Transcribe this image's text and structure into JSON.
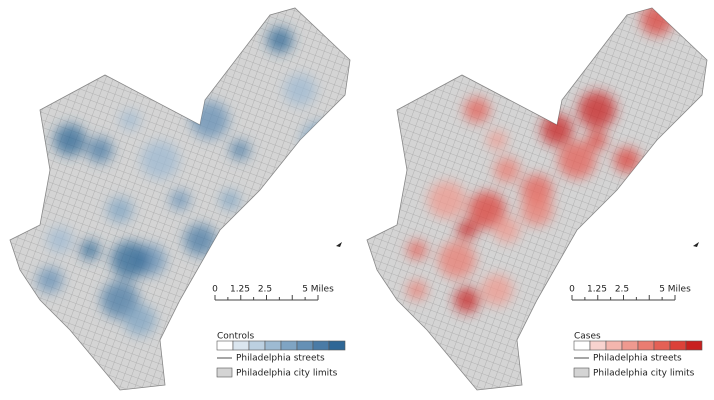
{
  "panels": [
    {
      "scale_bar": {
        "labels": [
          "0",
          "1.25",
          "2.5",
          "5 Miles"
        ]
      },
      "legend": {
        "title": "Controls",
        "colors": [
          "#ffffff",
          "#dbe6ef",
          "#bcd0e1",
          "#9dbad2",
          "#7fa4c3",
          "#6590b5",
          "#4a7ba6",
          "#2f6796"
        ],
        "streets": "Philadelphia streets",
        "limits": "Philadelphia city limits"
      }
    },
    {
      "scale_bar": {
        "labels": [
          "0",
          "1.25",
          "2.5",
          "5 Miles"
        ]
      },
      "legend": {
        "title": "Cases",
        "colors": [
          "#ffffff",
          "#f8d3cf",
          "#f4b6ae",
          "#ef998f",
          "#ea7c71",
          "#e46055",
          "#dc4139",
          "#c8201f"
        ],
        "streets": "Philadelphia streets",
        "limits": "Philadelphia city limits"
      }
    }
  ]
}
